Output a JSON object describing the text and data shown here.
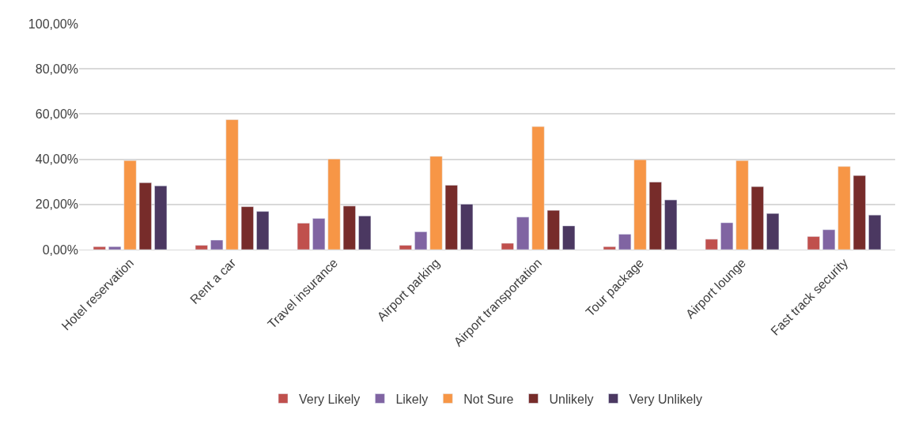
{
  "chart_data": {
    "type": "bar",
    "categories": [
      "Hotel reservation",
      "Rent a car",
      "Travel insurance",
      "Airport parking",
      "Airport transportation",
      "Tour package",
      "Airport lounge",
      "Fast track security"
    ],
    "series": [
      {
        "name": "Very Likely",
        "color": "#c0504d",
        "values": [
          1.3,
          1.9,
          11.7,
          1.9,
          2.8,
          1.3,
          4.6,
          5.8
        ]
      },
      {
        "name": "Likely",
        "color": "#8064a2",
        "values": [
          1.3,
          4.2,
          13.8,
          7.9,
          14.4,
          6.8,
          11.9,
          8.8
        ]
      },
      {
        "name": "Not Sure",
        "color": "#f79646",
        "values": [
          39.4,
          57.5,
          40.1,
          41.3,
          54.5,
          39.8,
          39.4,
          36.8
        ]
      },
      {
        "name": "Unlikely",
        "color": "#772c2a",
        "values": [
          29.6,
          19.0,
          19.3,
          28.5,
          17.4,
          29.9,
          27.9,
          32.8
        ]
      },
      {
        "name": "Very Unlikely",
        "color": "#4b3861",
        "values": [
          28.2,
          16.9,
          14.9,
          20.1,
          10.5,
          22.0,
          16.0,
          15.3
        ]
      }
    ],
    "ylim": [
      0,
      100
    ],
    "yticks": [
      {
        "value": 0,
        "label": "0,00%"
      },
      {
        "value": 20,
        "label": "20,00%"
      },
      {
        "value": 40,
        "label": "40,00%"
      },
      {
        "value": 60,
        "label": "60,00%"
      },
      {
        "value": 80,
        "label": "80,00%"
      },
      {
        "value": 100,
        "label": "100,00%"
      }
    ],
    "grid": "y",
    "legend": "bottom"
  }
}
